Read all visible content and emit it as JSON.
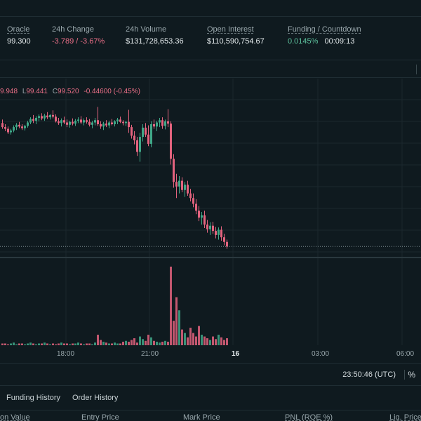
{
  "stats": [
    {
      "label": "Oracle",
      "value": "99.300",
      "tone": "neutral",
      "underline": true
    },
    {
      "label": "24h Change",
      "value": "-3.789 / -3.67%",
      "tone": "neg",
      "underline": false
    },
    {
      "label": "24h Volume",
      "value": "$131,728,653.36",
      "tone": "neutral",
      "underline": false
    },
    {
      "label": "Open Interest",
      "value": "$110,590,754.67",
      "tone": "neutral",
      "underline": true
    },
    {
      "label": "Funding / Countdown",
      "value": "0.0145%",
      "value2": "00:09:13",
      "tone": "pos",
      "underline": true
    }
  ],
  "ohlc": {
    "h_value": "9.948",
    "l_key": "L",
    "l_value": "99.441",
    "c_key": "C",
    "c_value": "99.520",
    "change": "-0.44600 (-0.45%)"
  },
  "x_axis": {
    "labels": [
      "18:00",
      "21:00",
      "16",
      "03:00",
      "06:00"
    ],
    "current": "16"
  },
  "clock": "23:50:46 (UTC)",
  "percent_toggle": "%",
  "tabs": [
    "Funding History",
    "Order History"
  ],
  "columns": [
    "on Value",
    "Entry Price",
    "Mark Price",
    "PNL (ROE %)",
    "Liq. Price"
  ],
  "chart_data": {
    "type": "candlestick",
    "note_colors": {
      "up": "#3fa888",
      "down": "#e3637e"
    },
    "candles": [
      {
        "o": 100.12,
        "h": 100.18,
        "l": 100.02,
        "c": 100.05
      },
      {
        "o": 100.05,
        "h": 100.1,
        "l": 99.98,
        "c": 100.02
      },
      {
        "o": 100.02,
        "h": 100.06,
        "l": 99.93,
        "c": 99.96
      },
      {
        "o": 99.96,
        "h": 100.02,
        "l": 99.92,
        "c": 99.99
      },
      {
        "o": 99.99,
        "h": 100.08,
        "l": 99.96,
        "c": 100.05
      },
      {
        "o": 100.05,
        "h": 100.12,
        "l": 100.0,
        "c": 100.09
      },
      {
        "o": 100.09,
        "h": 100.14,
        "l": 100.03,
        "c": 100.06
      },
      {
        "o": 100.06,
        "h": 100.1,
        "l": 100.0,
        "c": 100.03
      },
      {
        "o": 100.03,
        "h": 100.09,
        "l": 99.99,
        "c": 100.07
      },
      {
        "o": 100.07,
        "h": 100.16,
        "l": 100.04,
        "c": 100.13
      },
      {
        "o": 100.13,
        "h": 100.22,
        "l": 100.1,
        "c": 100.19
      },
      {
        "o": 100.19,
        "h": 100.26,
        "l": 100.12,
        "c": 100.16
      },
      {
        "o": 100.16,
        "h": 100.24,
        "l": 100.1,
        "c": 100.21
      },
      {
        "o": 100.21,
        "h": 100.27,
        "l": 100.15,
        "c": 100.24
      },
      {
        "o": 100.24,
        "h": 100.29,
        "l": 100.17,
        "c": 100.2
      },
      {
        "o": 100.2,
        "h": 100.28,
        "l": 100.16,
        "c": 100.25
      },
      {
        "o": 100.25,
        "h": 100.31,
        "l": 100.19,
        "c": 100.22
      },
      {
        "o": 100.22,
        "h": 100.27,
        "l": 100.18,
        "c": 100.26
      },
      {
        "o": 100.26,
        "h": 100.34,
        "l": 100.2,
        "c": 100.23
      },
      {
        "o": 100.23,
        "h": 100.27,
        "l": 100.13,
        "c": 100.15
      },
      {
        "o": 100.15,
        "h": 100.21,
        "l": 100.09,
        "c": 100.12
      },
      {
        "o": 100.12,
        "h": 100.2,
        "l": 100.06,
        "c": 100.17
      },
      {
        "o": 100.17,
        "h": 100.23,
        "l": 100.1,
        "c": 100.13
      },
      {
        "o": 100.13,
        "h": 100.18,
        "l": 100.05,
        "c": 100.09
      },
      {
        "o": 100.09,
        "h": 100.16,
        "l": 100.04,
        "c": 100.14
      },
      {
        "o": 100.14,
        "h": 100.2,
        "l": 100.08,
        "c": 100.11
      },
      {
        "o": 100.11,
        "h": 100.19,
        "l": 100.07,
        "c": 100.16
      },
      {
        "o": 100.16,
        "h": 100.22,
        "l": 100.12,
        "c": 100.18
      },
      {
        "o": 100.18,
        "h": 100.24,
        "l": 100.1,
        "c": 100.13
      },
      {
        "o": 100.13,
        "h": 100.2,
        "l": 100.08,
        "c": 100.17
      },
      {
        "o": 100.17,
        "h": 100.22,
        "l": 100.11,
        "c": 100.14
      },
      {
        "o": 100.14,
        "h": 100.19,
        "l": 100.06,
        "c": 100.09
      },
      {
        "o": 100.09,
        "h": 100.16,
        "l": 100.03,
        "c": 100.13
      },
      {
        "o": 100.13,
        "h": 100.21,
        "l": 100.08,
        "c": 100.17
      },
      {
        "o": 100.17,
        "h": 100.4,
        "l": 100.07,
        "c": 100.1
      },
      {
        "o": 100.1,
        "h": 100.15,
        "l": 100.02,
        "c": 100.06
      },
      {
        "o": 100.06,
        "h": 100.14,
        "l": 100.0,
        "c": 100.11
      },
      {
        "o": 100.11,
        "h": 100.17,
        "l": 100.05,
        "c": 100.08
      },
      {
        "o": 100.08,
        "h": 100.16,
        "l": 100.03,
        "c": 100.13
      },
      {
        "o": 100.13,
        "h": 100.19,
        "l": 100.08,
        "c": 100.1
      },
      {
        "o": 100.1,
        "h": 100.17,
        "l": 100.06,
        "c": 100.15
      },
      {
        "o": 100.15,
        "h": 100.21,
        "l": 100.1,
        "c": 100.18
      },
      {
        "o": 100.18,
        "h": 100.23,
        "l": 100.12,
        "c": 100.14
      },
      {
        "o": 100.14,
        "h": 100.17,
        "l": 100.08,
        "c": 100.12
      },
      {
        "o": 100.12,
        "h": 100.16,
        "l": 100.07,
        "c": 100.14
      },
      {
        "o": 100.14,
        "h": 100.35,
        "l": 99.95,
        "c": 100.05
      },
      {
        "o": 100.05,
        "h": 100.09,
        "l": 99.85,
        "c": 99.9
      },
      {
        "o": 99.9,
        "h": 99.98,
        "l": 99.75,
        "c": 99.82
      },
      {
        "o": 99.82,
        "h": 99.88,
        "l": 99.55,
        "c": 99.62
      },
      {
        "o": 99.62,
        "h": 99.95,
        "l": 99.45,
        "c": 99.88
      },
      {
        "o": 99.88,
        "h": 100.1,
        "l": 99.8,
        "c": 100.04
      },
      {
        "o": 100.04,
        "h": 100.12,
        "l": 99.88,
        "c": 99.92
      },
      {
        "o": 99.92,
        "h": 100.08,
        "l": 99.72,
        "c": 99.76
      },
      {
        "o": 99.76,
        "h": 100.15,
        "l": 99.7,
        "c": 100.1
      },
      {
        "o": 100.1,
        "h": 100.18,
        "l": 100.02,
        "c": 100.06
      },
      {
        "o": 100.06,
        "h": 100.16,
        "l": 99.98,
        "c": 100.13
      },
      {
        "o": 100.13,
        "h": 100.21,
        "l": 100.05,
        "c": 100.17
      },
      {
        "o": 100.17,
        "h": 100.22,
        "l": 100.02,
        "c": 100.07
      },
      {
        "o": 100.07,
        "h": 100.18,
        "l": 100.01,
        "c": 100.15
      },
      {
        "o": 100.15,
        "h": 100.36,
        "l": 100.05,
        "c": 100.11
      },
      {
        "o": 100.11,
        "h": 100.15,
        "l": 99.4,
        "c": 99.5
      },
      {
        "o": 99.5,
        "h": 99.58,
        "l": 99.0,
        "c": 99.1
      },
      {
        "o": 99.1,
        "h": 99.24,
        "l": 98.82,
        "c": 99.02
      },
      {
        "o": 99.02,
        "h": 99.2,
        "l": 98.9,
        "c": 99.12
      },
      {
        "o": 99.12,
        "h": 99.18,
        "l": 98.92,
        "c": 98.96
      },
      {
        "o": 98.96,
        "h": 99.1,
        "l": 98.84,
        "c": 99.05
      },
      {
        "o": 99.05,
        "h": 99.12,
        "l": 98.86,
        "c": 98.9
      },
      {
        "o": 98.9,
        "h": 98.98,
        "l": 98.76,
        "c": 98.82
      },
      {
        "o": 98.82,
        "h": 98.9,
        "l": 98.66,
        "c": 98.72
      },
      {
        "o": 98.72,
        "h": 98.8,
        "l": 98.54,
        "c": 98.6
      },
      {
        "o": 98.6,
        "h": 98.68,
        "l": 98.42,
        "c": 98.48
      },
      {
        "o": 98.48,
        "h": 98.58,
        "l": 98.36,
        "c": 98.52
      },
      {
        "o": 98.52,
        "h": 98.6,
        "l": 98.3,
        "c": 98.36
      },
      {
        "o": 98.36,
        "h": 98.44,
        "l": 98.22,
        "c": 98.28
      },
      {
        "o": 98.28,
        "h": 98.4,
        "l": 98.18,
        "c": 98.34
      },
      {
        "o": 98.34,
        "h": 98.41,
        "l": 98.2,
        "c": 98.25
      },
      {
        "o": 98.25,
        "h": 98.32,
        "l": 98.12,
        "c": 98.18
      },
      {
        "o": 98.18,
        "h": 98.31,
        "l": 98.1,
        "c": 98.27
      },
      {
        "o": 98.27,
        "h": 98.33,
        "l": 98.08,
        "c": 98.14
      },
      {
        "o": 98.14,
        "h": 98.2,
        "l": 98.0,
        "c": 98.06
      },
      {
        "o": 98.06,
        "h": 98.1,
        "l": 97.94,
        "c": 97.98
      }
    ],
    "volume": [
      2,
      2,
      1,
      2,
      3,
      1,
      2,
      2,
      1,
      2,
      3,
      2,
      1,
      2,
      2,
      3,
      2,
      1,
      2,
      1,
      2,
      3,
      2,
      2,
      1,
      2,
      2,
      3,
      2,
      1,
      2,
      2,
      1,
      3,
      12,
      6,
      4,
      3,
      2,
      2,
      3,
      2,
      2,
      4,
      5,
      4,
      6,
      8,
      3,
      10,
      7,
      5,
      12,
      9,
      5,
      4,
      3,
      4,
      5,
      4,
      90,
      28,
      55,
      40,
      18,
      14,
      9,
      20,
      14,
      10,
      22,
      12,
      10,
      8,
      6,
      10,
      7,
      12,
      9,
      6,
      8
    ],
    "x_labels": [
      "18:00",
      "21:00",
      "16",
      "03:00",
      "06:00"
    ]
  }
}
